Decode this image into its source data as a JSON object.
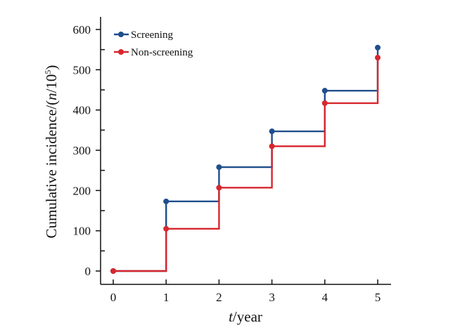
{
  "chart_data": {
    "type": "line",
    "step": "post",
    "xlabel_italic": "t",
    "xlabel_rest": "/year",
    "ylabel_main": "Cumulative incidence/(",
    "ylabel_italic": "n",
    "ylabel_tail": "/10",
    "ylabel_sup": "5",
    "ylabel_close": ")",
    "xlim": [
      0,
      5
    ],
    "ylim": [
      0,
      600
    ],
    "xticks": [
      0,
      1,
      2,
      3,
      4,
      5
    ],
    "yticks": [
      0,
      100,
      200,
      300,
      400,
      500,
      600
    ],
    "grid": false,
    "legend_position": "top-left",
    "series": [
      {
        "name": "Screening",
        "color": "#1f4e8c",
        "x": [
          0,
          1,
          2,
          3,
          4,
          5
        ],
        "y": [
          0,
          173,
          258,
          347,
          448,
          555
        ]
      },
      {
        "name": "Non-screening",
        "color": "#d7262e",
        "x": [
          0,
          1,
          2,
          3,
          4,
          5
        ],
        "y": [
          0,
          105,
          207,
          310,
          417,
          530
        ]
      }
    ]
  }
}
